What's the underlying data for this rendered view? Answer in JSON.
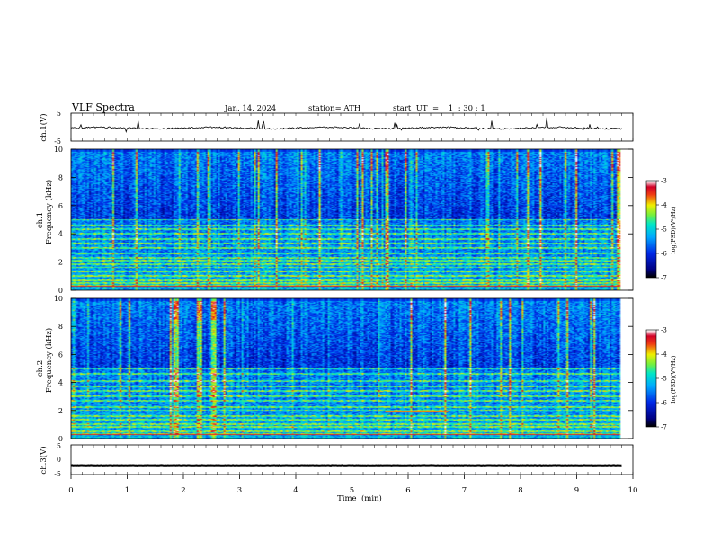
{
  "header": {
    "title": "VLF  Spectra",
    "date": "Jan. 14, 2024",
    "station": "station= ATH",
    "start_ut": "start  UT  =    1  : 30 : 1"
  },
  "chart_data": [
    {
      "type": "line",
      "ylabel": "ch.1(V)",
      "ylim": [
        -5,
        5
      ],
      "yticks": [
        "5",
        "-5"
      ],
      "baseline": -0.3,
      "noise": 0.25
    },
    {
      "type": "heatmap",
      "ylabel": "ch.1\nFrequency (kHz)",
      "ylim": [
        0,
        10
      ],
      "yticks": [
        "0",
        "2",
        "4",
        "6",
        "8",
        "10"
      ],
      "color_range": [
        -7,
        -3
      ],
      "colorbar_ticks": [
        "-3",
        "-4",
        "-5",
        "-6",
        "-7"
      ],
      "colorbar_label": "log(PSD)(V²/Hz)",
      "bands_khz": [
        0.3,
        0.5,
        0.7,
        1.0,
        1.3,
        1.6,
        1.8,
        2.1,
        2.3,
        2.6,
        3.0,
        3.3,
        3.6,
        4.0,
        4.3,
        4.6,
        5.0
      ],
      "orange_bands": []
    },
    {
      "type": "heatmap",
      "ylabel": "ch.2\nFrequency (kHz)",
      "ylim": [
        0,
        10
      ],
      "yticks": [
        "0",
        "2",
        "4",
        "6",
        "8",
        "10"
      ],
      "color_range": [
        -7,
        -3
      ],
      "colorbar_ticks": [
        "-3",
        "-4",
        "-5",
        "-6",
        "-7"
      ],
      "colorbar_label": "log(PSD)(V²/Hz)",
      "bands_khz": [
        0.3,
        0.5,
        0.8,
        1.0,
        1.3,
        1.6,
        2.0,
        2.2,
        2.7,
        3.0,
        3.4,
        3.7,
        4.1,
        4.6,
        5.0
      ],
      "orange_bands": [
        {
          "x_start": 0.15,
          "x_end": 1.1,
          "freq_khz": 1.9
        },
        {
          "x_start": 5.6,
          "x_end": 6.7,
          "freq_khz": 1.9
        }
      ]
    },
    {
      "type": "line",
      "ylabel": "ch.3(V)",
      "ylim": [
        -5,
        5
      ],
      "yticks": [
        "5",
        "0",
        "-5"
      ],
      "baseline": -2.0,
      "noise": 0.05
    }
  ],
  "x_axis": {
    "label": "Time  (min)",
    "range": [
      0,
      10
    ],
    "ticks": [
      "0",
      "1",
      "2",
      "3",
      "4",
      "5",
      "6",
      "7",
      "8",
      "9",
      "10"
    ],
    "data_end_min": 9.8
  }
}
